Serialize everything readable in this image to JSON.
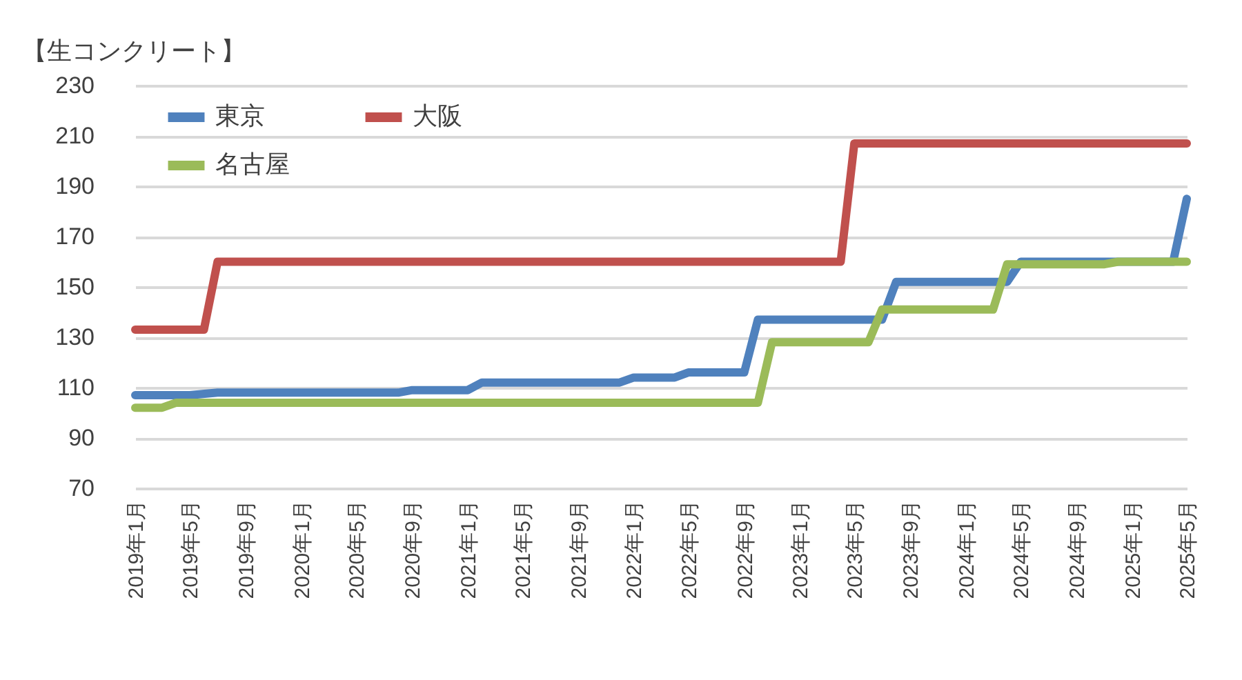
{
  "chart_data": {
    "type": "line",
    "title": "【生コンクリート】",
    "xlim": [
      "2019-01",
      "2025-05"
    ],
    "xticks": [
      {
        "value": "2019-01",
        "label": "2019年1月"
      },
      {
        "value": "2019-05",
        "label": "2019年5月"
      },
      {
        "value": "2019-09",
        "label": "2019年9月"
      },
      {
        "value": "2020-01",
        "label": "2020年1月"
      },
      {
        "value": "2020-05",
        "label": "2020年5月"
      },
      {
        "value": "2020-09",
        "label": "2020年9月"
      },
      {
        "value": "2021-01",
        "label": "2021年1月"
      },
      {
        "value": "2021-05",
        "label": "2021年5月"
      },
      {
        "value": "2021-09",
        "label": "2021年9月"
      },
      {
        "value": "2022-01",
        "label": "2022年1月"
      },
      {
        "value": "2022-05",
        "label": "2022年5月"
      },
      {
        "value": "2022-09",
        "label": "2022年9月"
      },
      {
        "value": "2023-01",
        "label": "2023年1月"
      },
      {
        "value": "2023-05",
        "label": "2023年5月"
      },
      {
        "value": "2023-09",
        "label": "2023年9月"
      },
      {
        "value": "2024-01",
        "label": "2024年1月"
      },
      {
        "value": "2024-05",
        "label": "2024年5月"
      },
      {
        "value": "2024-09",
        "label": "2024年9月"
      },
      {
        "value": "2025-01",
        "label": "2025年1月"
      },
      {
        "value": "2025-05",
        "label": "2025年5月"
      }
    ],
    "ylim": [
      70,
      230
    ],
    "yticks": [
      70,
      90,
      110,
      130,
      150,
      170,
      190,
      210,
      230
    ],
    "grid": "y",
    "legend": "top left",
    "marker": "none",
    "line_style": "solid",
    "series": [
      {
        "name": "東京",
        "color": "#4f81bd",
        "x": [
          "2019-01",
          "2019-05",
          "2019-07",
          "2020-08",
          "2020-09",
          "2021-01",
          "2021-02",
          "2021-12",
          "2022-01",
          "2022-04",
          "2022-05",
          "2022-09",
          "2022-10",
          "2023-07",
          "2023-08",
          "2024-04",
          "2024-05",
          "2025-04",
          "2025-05"
        ],
        "values": [
          107,
          107,
          108,
          108,
          109,
          109,
          112,
          112,
          114,
          114,
          116,
          116,
          137,
          137,
          152,
          152,
          160,
          160,
          185
        ]
      },
      {
        "name": "大阪",
        "color": "#c0504d",
        "x": [
          "2019-01",
          "2019-06",
          "2019-07",
          "2023-04",
          "2023-05",
          "2025-05"
        ],
        "values": [
          133,
          133,
          160,
          160,
          207,
          207
        ]
      },
      {
        "name": "名古屋",
        "color": "#9bbb59",
        "x": [
          "2019-01",
          "2019-03",
          "2019-04",
          "2022-10",
          "2022-11",
          "2023-06",
          "2023-07",
          "2024-03",
          "2024-04",
          "2024-11",
          "2024-12",
          "2025-05"
        ],
        "values": [
          102,
          102,
          104,
          104,
          128,
          128,
          141,
          141,
          159,
          159,
          160,
          160
        ]
      }
    ]
  }
}
